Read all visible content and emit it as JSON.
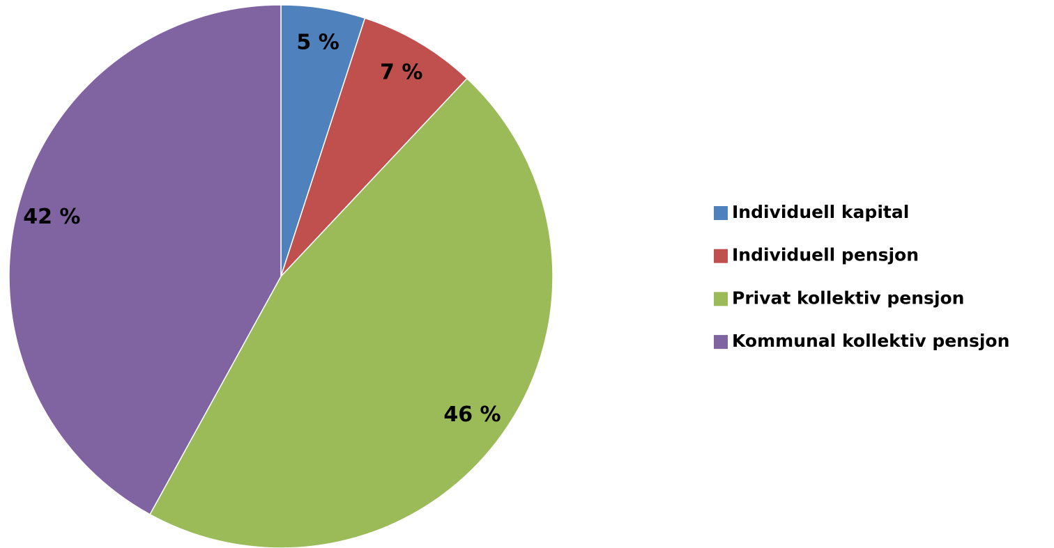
{
  "chart_data": {
    "type": "pie",
    "categories": [
      "Individuell kapital",
      "Individuell pensjon",
      "Privat kollektiv pensjon",
      "Kommunal kollektiv pensjon"
    ],
    "values": [
      5,
      7,
      46,
      42
    ],
    "value_labels": [
      "5 %",
      "7 %",
      "46 %",
      "42 %"
    ],
    "colors": [
      "#4f81bd",
      "#c0504d",
      "#9bbb59",
      "#8064a2"
    ],
    "legend": "right"
  }
}
